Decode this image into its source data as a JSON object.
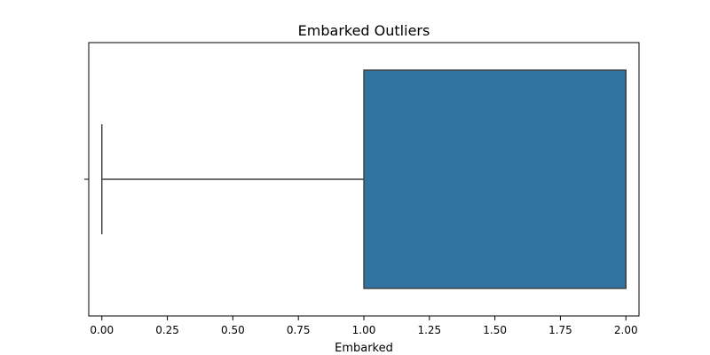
{
  "chart_data": {
    "type": "box",
    "title": "Embarked Outliers",
    "xlabel": "Embarked",
    "ylabel": "",
    "xlim": [
      -0.05,
      2.05
    ],
    "xticks": [
      0.0,
      0.25,
      0.5,
      0.75,
      1.0,
      1.25,
      1.5,
      1.75,
      2.0
    ],
    "xtick_labels": [
      "0.00",
      "0.25",
      "0.50",
      "0.75",
      "1.00",
      "1.25",
      "1.50",
      "1.75",
      "2.00"
    ],
    "orientation": "horizontal",
    "grid": false,
    "box": {
      "min": 0.0,
      "q1": 1.0,
      "median": 2.0,
      "q3": 2.0,
      "max": 2.0,
      "color": "#3274a1",
      "edge_color": "#3f3f3f"
    }
  }
}
